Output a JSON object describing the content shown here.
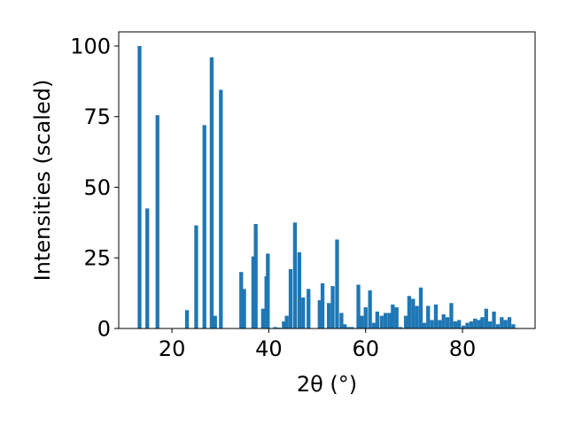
{
  "chart_data": {
    "type": "bar",
    "xlabel": "2θ (°)",
    "ylabel": "Intensities (scaled)",
    "xlim": [
      9,
      95
    ],
    "ylim": [
      0,
      105
    ],
    "xticks": [
      20,
      40,
      60,
      80
    ],
    "yticks": [
      0,
      25,
      50,
      75,
      100
    ],
    "color": "#1f77b4",
    "grid": false,
    "series": [
      {
        "x": [
          13.3,
          14.9,
          17.0,
          23.1,
          25.0,
          26.7,
          28.2,
          28.9,
          30.1,
          34.3,
          34.9,
          36.8,
          37.3,
          38.8,
          39.5,
          39.8,
          41.3,
          42.1,
          43.1,
          43.7,
          44.5,
          45.4,
          46.3,
          47.1,
          48.2,
          50.5,
          51.1,
          52.4,
          53.2,
          54.1,
          55.0,
          55.7,
          56.5,
          57.2,
          58.5,
          59.2,
          60.0,
          60.9,
          61.7,
          62.4,
          63.3,
          64.1,
          64.9,
          65.6,
          66.4,
          67.2,
          68.3,
          69.0,
          69.8,
          70.6,
          71.4,
          72.1,
          72.9,
          73.7,
          74.5,
          75.3,
          76.1,
          76.9,
          77.7,
          78.5,
          79.3,
          80.2,
          81.0,
          81.8,
          82.6,
          83.4,
          84.1,
          84.9,
          85.7,
          86.5,
          87.3,
          88.1,
          88.9,
          89.7,
          90.5
        ],
        "values": [
          100,
          42.5,
          75.5,
          6.5,
          36.5,
          72,
          96,
          4.5,
          84.5,
          20,
          14,
          25.5,
          37,
          7,
          18.5,
          26.5,
          0.5,
          0.3,
          2.5,
          4.5,
          21,
          37.5,
          27,
          11,
          14,
          10,
          16,
          9,
          15,
          31.5,
          5.5,
          1.5,
          0.5,
          0.5,
          15.5,
          4.5,
          7.5,
          13.5,
          2,
          6,
          4.5,
          5.5,
          5.5,
          8.5,
          7.5,
          0.5,
          4.5,
          11.5,
          10.5,
          8,
          14.5,
          2,
          8,
          3,
          8.5,
          3,
          5,
          4,
          9,
          2.5,
          3,
          1,
          2,
          2.5,
          3.5,
          3,
          4,
          7,
          2.5,
          6,
          1.5,
          4,
          3,
          4,
          1.5
        ]
      }
    ]
  }
}
